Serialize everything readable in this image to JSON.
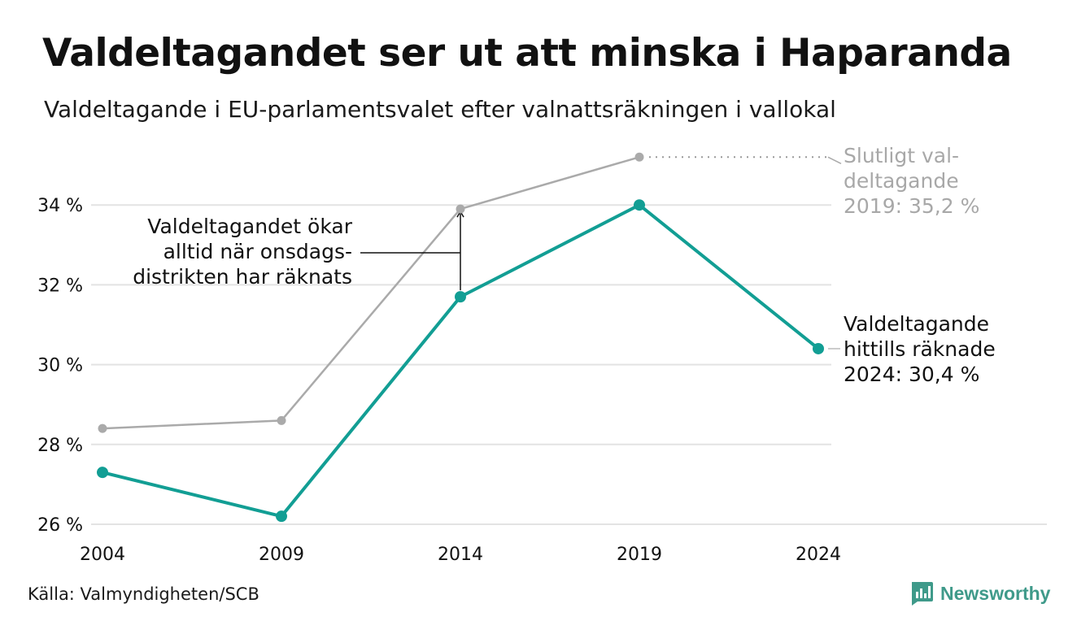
{
  "title": "Valdeltagandet ser ut att minska i Haparanda",
  "subtitle": "Valdeltagande i EU-parlamentsvalet efter valnattsräkningen i vallokal",
  "source": "Källa: Valmyndigheten/SCB",
  "brand": "Newsworthy",
  "colors": {
    "current": "#129e94",
    "final": "#aaaaaa",
    "grid": "#e3e3e3",
    "text": "#111111"
  },
  "chart_data": {
    "type": "line",
    "x": [
      "2004",
      "2009",
      "2014",
      "2019",
      "2024"
    ],
    "ylim": [
      26,
      35.5
    ],
    "yticks": [
      26,
      28,
      30,
      32,
      34
    ],
    "ytick_labels": [
      "26 %",
      "28 %",
      "30 %",
      "32 %",
      "34 %"
    ],
    "grid": true,
    "series": [
      {
        "key": "final",
        "values": [
          28.4,
          28.6,
          33.9,
          35.2,
          null
        ]
      },
      {
        "key": "current",
        "values": [
          27.3,
          26.2,
          31.7,
          34.0,
          30.4
        ]
      }
    ],
    "annotations": {
      "onsdag": [
        "Valdeltagandet ökar",
        "alltid när onsdags-",
        "distrikten har räknats"
      ],
      "final_2019": [
        "Slutligt val-",
        "deltagande",
        "2019: 35,2 %"
      ],
      "current_2024": [
        "Valdeltagande",
        "hittills räknade",
        "2024: 30,4 %"
      ]
    }
  }
}
